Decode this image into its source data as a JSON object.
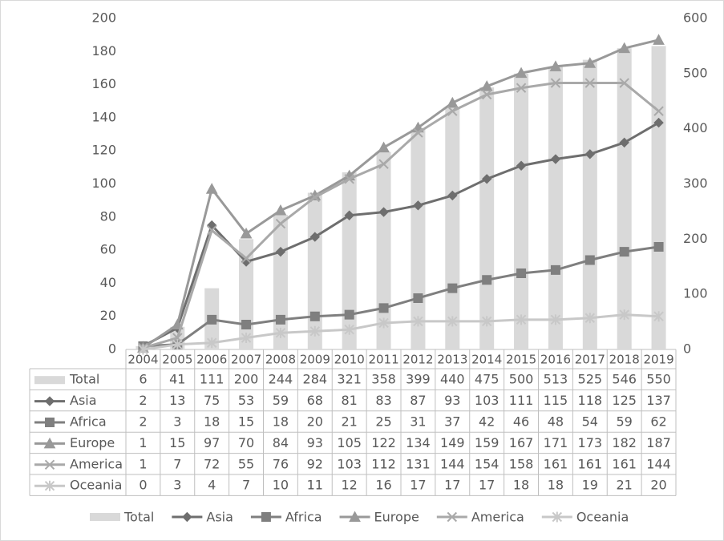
{
  "chart_data": {
    "type": "bar-line",
    "categories": [
      "2004",
      "2005",
      "2006",
      "2007",
      "2008",
      "2009",
      "2010",
      "2011",
      "2012",
      "2013",
      "2014",
      "2015",
      "2016",
      "2017",
      "2018",
      "2019"
    ],
    "series": [
      {
        "name": "Total",
        "type": "bar",
        "axis": "y2",
        "color": "#d9d9d9",
        "values": [
          6,
          41,
          111,
          200,
          244,
          284,
          321,
          358,
          399,
          440,
          475,
          500,
          513,
          525,
          546,
          550
        ]
      },
      {
        "name": "Asia",
        "type": "line",
        "marker": "diamond",
        "color": "#6e6e6e",
        "values": [
          2,
          13,
          75,
          53,
          59,
          68,
          81,
          83,
          87,
          93,
          103,
          111,
          115,
          118,
          125,
          137
        ]
      },
      {
        "name": "Africa",
        "type": "line",
        "marker": "square",
        "color": "#7f7f7f",
        "values": [
          2,
          3,
          18,
          15,
          18,
          20,
          21,
          25,
          31,
          37,
          42,
          46,
          48,
          54,
          59,
          62
        ]
      },
      {
        "name": "Europe",
        "type": "line",
        "marker": "triangle",
        "color": "#999999",
        "values": [
          1,
          15,
          97,
          70,
          84,
          93,
          105,
          122,
          134,
          149,
          159,
          167,
          171,
          173,
          182,
          187
        ]
      },
      {
        "name": "America",
        "type": "line",
        "marker": "x",
        "color": "#a9a9a9",
        "values": [
          1,
          7,
          72,
          55,
          76,
          92,
          103,
          112,
          131,
          144,
          154,
          158,
          161,
          161,
          161,
          144
        ]
      },
      {
        "name": "Oceania",
        "type": "line",
        "marker": "star",
        "color": "#c8c8c8",
        "values": [
          0,
          3,
          4,
          7,
          10,
          11,
          12,
          16,
          17,
          17,
          17,
          18,
          18,
          19,
          21,
          20
        ]
      }
    ],
    "ylim": [
      0,
      200
    ],
    "yticks": [
      0,
      20,
      40,
      60,
      80,
      100,
      120,
      140,
      160,
      180,
      200
    ],
    "y2lim": [
      0,
      600
    ],
    "y2ticks": [
      0,
      100,
      200,
      300,
      400,
      500,
      600
    ],
    "data_table": true,
    "legend": "bottom"
  }
}
